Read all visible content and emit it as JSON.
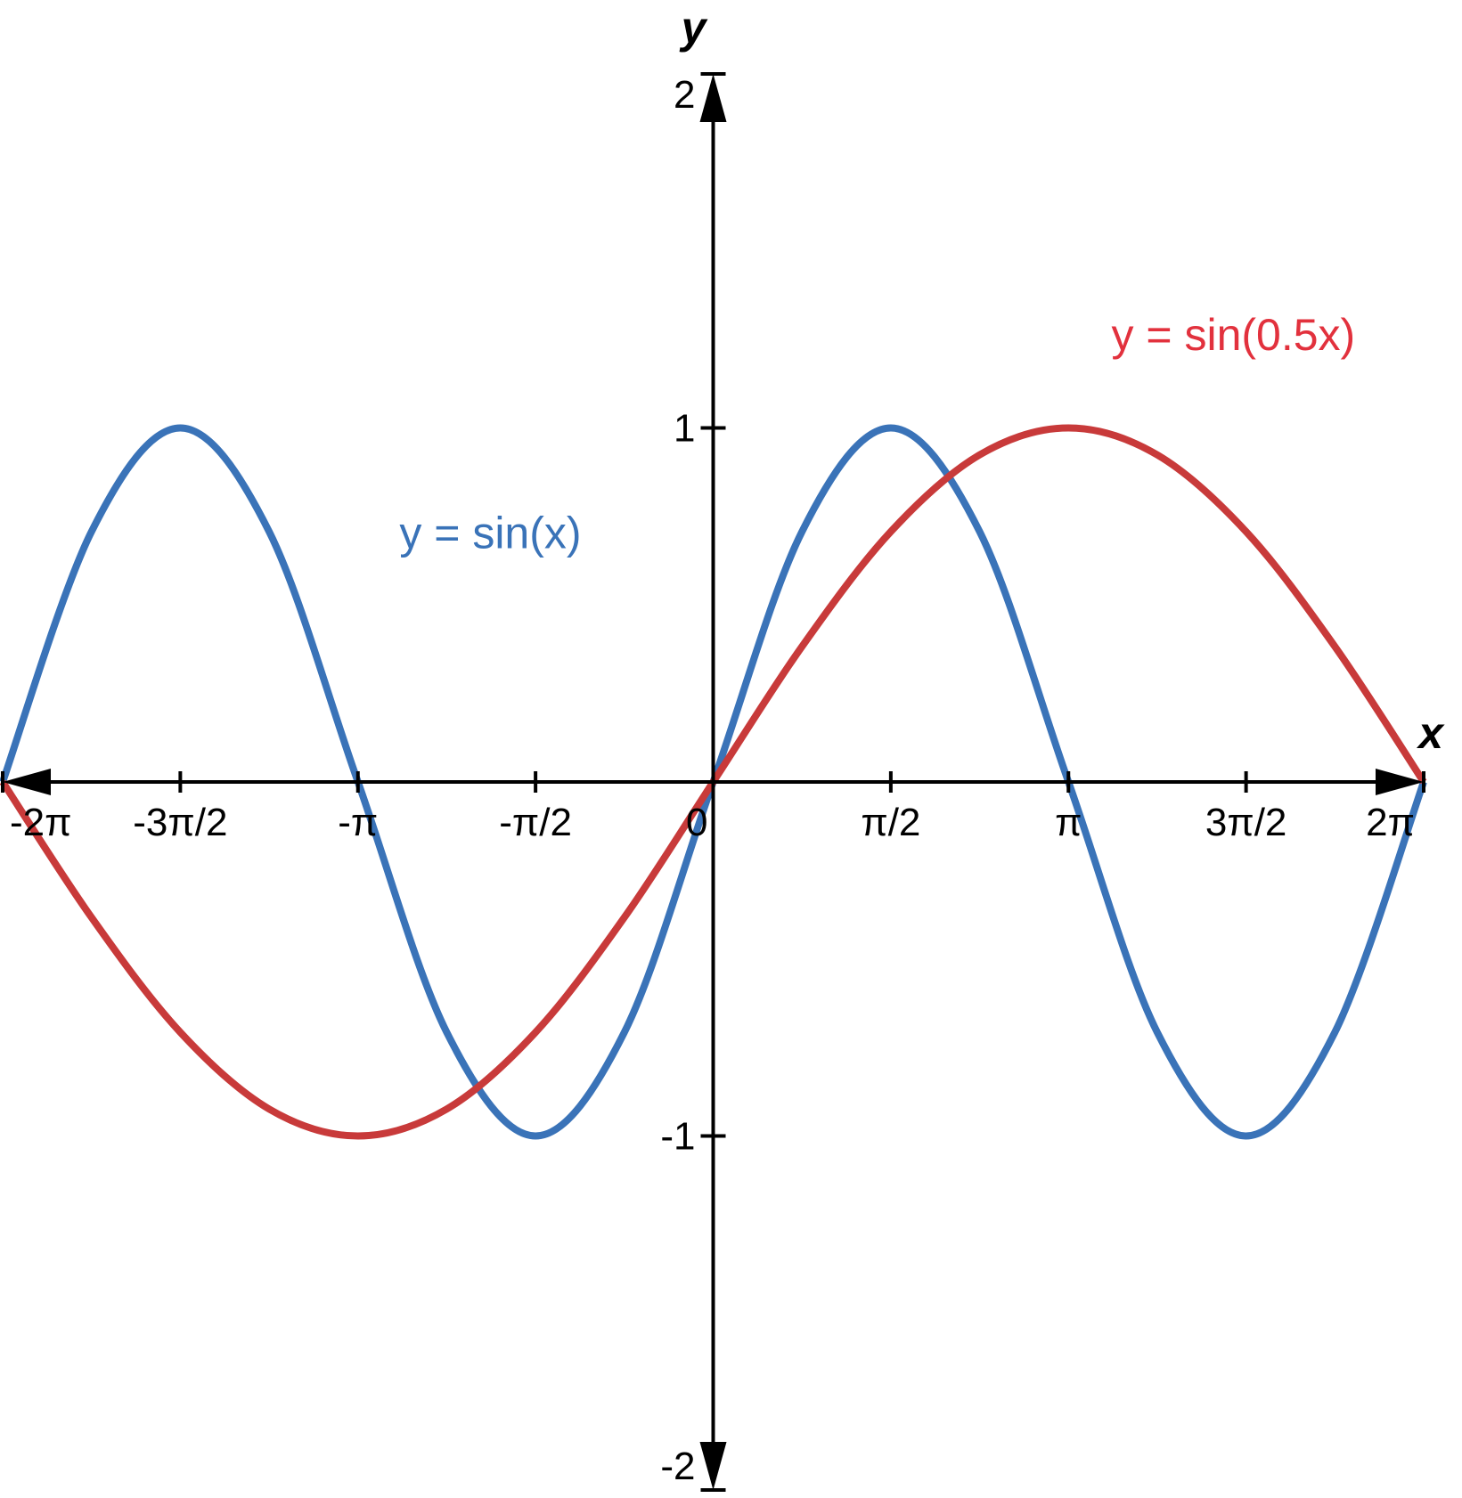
{
  "chart_data": {
    "type": "line",
    "xlabel": "x",
    "ylabel": "y",
    "xlim": [
      -6.2832,
      6.2832
    ],
    "ylim": [
      -2,
      2
    ],
    "x_ticks": [
      {
        "value": -6.2832,
        "label": "-2π"
      },
      {
        "value": -4.7124,
        "label": "-3π/2"
      },
      {
        "value": -3.1416,
        "label": "-π"
      },
      {
        "value": -1.5708,
        "label": "-π/2"
      },
      {
        "value": 0,
        "label": "0"
      },
      {
        "value": 1.5708,
        "label": "π/2"
      },
      {
        "value": 3.1416,
        "label": "π"
      },
      {
        "value": 4.7124,
        "label": "3π/2"
      },
      {
        "value": 6.2832,
        "label": "2π"
      }
    ],
    "y_ticks": [
      {
        "value": 2,
        "label": "2"
      },
      {
        "value": 1,
        "label": "1"
      },
      {
        "value": -1,
        "label": "-1"
      },
      {
        "value": -2,
        "label": "-2"
      }
    ],
    "grid": false,
    "series": [
      {
        "name": "y = sin(x)",
        "color": "#3a73b8",
        "x": [
          -6.2832,
          -5.4978,
          -4.7124,
          -3.927,
          -3.1416,
          -2.3562,
          -1.5708,
          -0.7854,
          0,
          0.7854,
          1.5708,
          2.3562,
          3.1416,
          3.927,
          4.7124,
          5.4978,
          6.2832
        ],
        "y": [
          0,
          0.7071,
          1,
          0.7071,
          0,
          -0.7071,
          -1,
          -0.7071,
          0,
          0.7071,
          1,
          0.7071,
          0,
          -0.7071,
          -1,
          -0.7071,
          0
        ]
      },
      {
        "name": "y = sin(0.5x)",
        "color": "#c83a3a",
        "x": [
          -6.2832,
          -5.4978,
          -4.7124,
          -3.927,
          -3.1416,
          -2.3562,
          -1.5708,
          -0.7854,
          0,
          0.7854,
          1.5708,
          2.3562,
          3.1416,
          3.927,
          4.7124,
          5.4978,
          6.2832
        ],
        "y": [
          0,
          -0.3827,
          -0.7071,
          -0.9239,
          -1,
          -0.9239,
          -0.7071,
          -0.3827,
          0,
          0.3827,
          0.7071,
          0.9239,
          1,
          0.9239,
          0.7071,
          0.3827,
          0
        ]
      }
    ],
    "annotations": [
      {
        "text": "y = sin(x)",
        "color": "#3a73b8",
        "x": -1.97,
        "y": 0.66
      },
      {
        "text": "y = sin(0.5x)",
        "color": "#e2313d",
        "x": 4.6,
        "y": 1.22
      }
    ]
  }
}
